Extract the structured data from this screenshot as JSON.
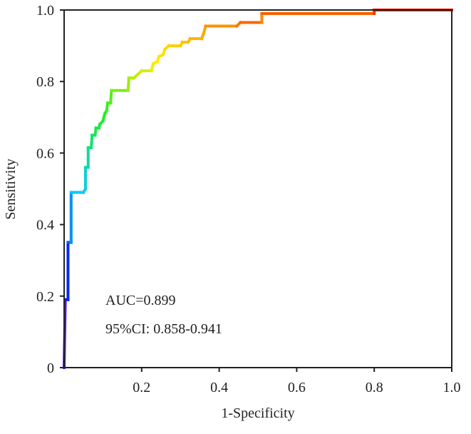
{
  "chart_data": {
    "type": "line",
    "xlabel": "1-Specificity",
    "ylabel": "Sensitivity",
    "xlim": [
      0,
      1.0
    ],
    "ylim": [
      0,
      1.0
    ],
    "x_ticks": [
      "0.2",
      "0.4",
      "0.6",
      "0.8",
      "1.0"
    ],
    "y_ticks": [
      "0",
      "0.2",
      "0.4",
      "0.6",
      "0.8",
      "1.0"
    ],
    "grid": false,
    "line_color_gradient": [
      "#8000ff",
      "#0022ee",
      "#00ccff",
      "#22ee22",
      "#ffee00",
      "#ff8800",
      "#ee0000"
    ],
    "annotations": [
      "AUC=0.899",
      "95%CI: 0.858-0.941"
    ],
    "series": [
      {
        "points": [
          [
            0,
            0
          ],
          [
            0.003,
            0.19
          ],
          [
            0.01,
            0.19
          ],
          [
            0.01,
            0.35
          ],
          [
            0.018,
            0.35
          ],
          [
            0.018,
            0.49
          ],
          [
            0.05,
            0.49
          ],
          [
            0.055,
            0.5
          ],
          [
            0.055,
            0.56
          ],
          [
            0.062,
            0.56
          ],
          [
            0.062,
            0.615
          ],
          [
            0.07,
            0.615
          ],
          [
            0.072,
            0.65
          ],
          [
            0.08,
            0.65
          ],
          [
            0.082,
            0.67
          ],
          [
            0.09,
            0.67
          ],
          [
            0.092,
            0.68
          ],
          [
            0.1,
            0.69
          ],
          [
            0.105,
            0.71
          ],
          [
            0.11,
            0.72
          ],
          [
            0.112,
            0.74
          ],
          [
            0.12,
            0.74
          ],
          [
            0.122,
            0.775
          ],
          [
            0.165,
            0.775
          ],
          [
            0.167,
            0.81
          ],
          [
            0.18,
            0.81
          ],
          [
            0.19,
            0.82
          ],
          [
            0.2,
            0.83
          ],
          [
            0.225,
            0.83
          ],
          [
            0.23,
            0.85
          ],
          [
            0.24,
            0.855
          ],
          [
            0.245,
            0.87
          ],
          [
            0.255,
            0.875
          ],
          [
            0.26,
            0.89
          ],
          [
            0.27,
            0.9
          ],
          [
            0.3,
            0.9
          ],
          [
            0.305,
            0.91
          ],
          [
            0.32,
            0.91
          ],
          [
            0.325,
            0.92
          ],
          [
            0.355,
            0.92
          ],
          [
            0.36,
            0.935
          ],
          [
            0.365,
            0.955
          ],
          [
            0.445,
            0.955
          ],
          [
            0.455,
            0.965
          ],
          [
            0.51,
            0.965
          ],
          [
            0.51,
            0.99
          ],
          [
            0.8,
            0.99
          ],
          [
            0.8,
            1.0
          ],
          [
            1.0,
            1.0
          ]
        ]
      }
    ]
  }
}
